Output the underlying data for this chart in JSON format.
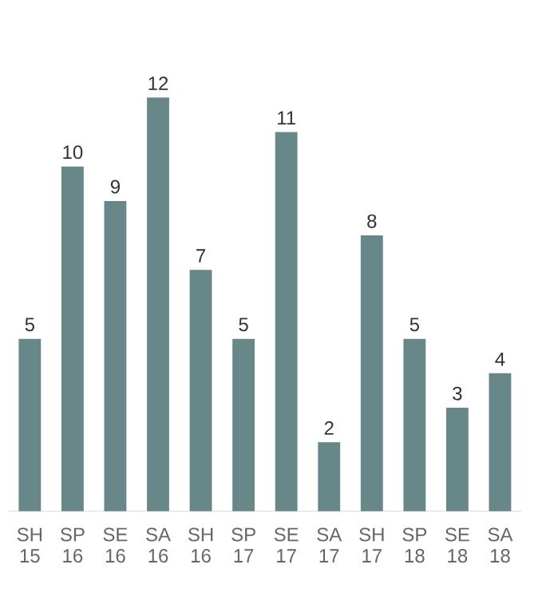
{
  "chart_data": {
    "type": "bar",
    "categories": [
      "SH 15",
      "SP 16",
      "SE 16",
      "SA 16",
      "SH 16",
      "SP 17",
      "SE 17",
      "SA 17",
      "SH 17",
      "SP 18",
      "SE 18",
      "SA 18"
    ],
    "values": [
      5,
      10,
      9,
      12,
      7,
      5,
      11,
      2,
      8,
      5,
      3,
      4
    ],
    "color": "#688789",
    "data_labels": true
  }
}
